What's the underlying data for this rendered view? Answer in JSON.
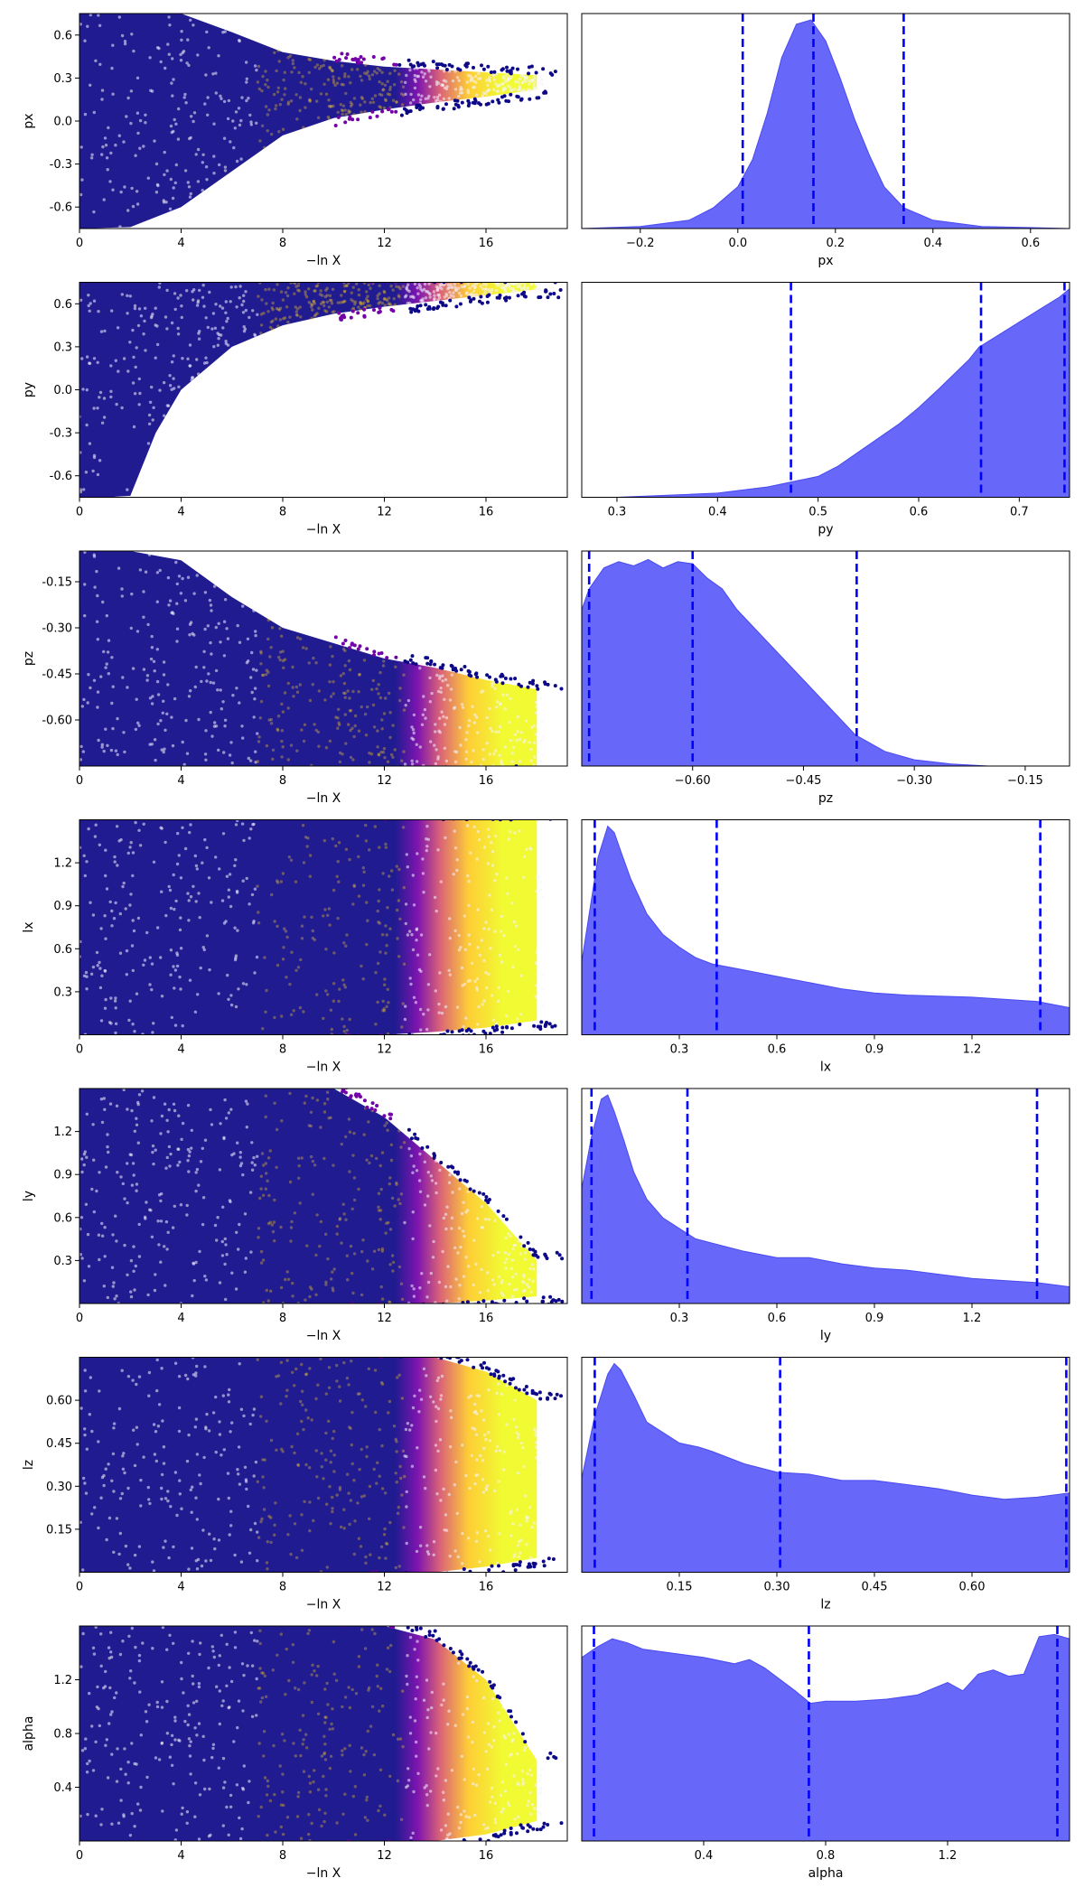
{
  "colors": {
    "scatter_colormap": "plasma",
    "colormap_stops": [
      "#0d0887",
      "#47039f",
      "#7301a8",
      "#9c179e",
      "#bd3786",
      "#d8576b",
      "#ed7953",
      "#fa9e3b",
      "#fdc926",
      "#f0f921"
    ],
    "kde_fill": "#6464fa",
    "kde_edge": "#4a4af0",
    "quantile_line": "#0000ff"
  },
  "chart_data": [
    {
      "type": "scatter",
      "xlabel": "−ln X",
      "ylabel": "px",
      "xlim": [
        0,
        19.2
      ],
      "xticks": [
        "0",
        "4",
        "8",
        "12",
        "16"
      ],
      "ylim": [
        -0.75,
        0.75
      ],
      "yticks": [
        "-0.6",
        "-0.3",
        "0.0",
        "0.3",
        "0.6"
      ],
      "envelope": {
        "x": [
          0,
          2,
          4,
          6,
          8,
          10,
          12,
          14,
          16,
          18
        ],
        "lower": [
          -0.75,
          -0.74,
          -0.6,
          -0.35,
          -0.1,
          0.02,
          0.08,
          0.13,
          0.17,
          0.22
        ],
        "upper": [
          0.75,
          0.75,
          0.75,
          0.62,
          0.48,
          0.42,
          0.38,
          0.36,
          0.34,
          0.32
        ]
      }
    },
    {
      "type": "area",
      "xlabel": "px",
      "xlim": [
        -0.32,
        0.68
      ],
      "xticks": [
        -0.2,
        0.0,
        0.2,
        0.4,
        0.6
      ],
      "xtick_labels": [
        "−0.2",
        "0.0",
        "0.2",
        "0.4",
        "0.6"
      ],
      "density": {
        "x": [
          -0.32,
          -0.2,
          -0.1,
          -0.05,
          0.0,
          0.03,
          0.06,
          0.09,
          0.12,
          0.15,
          0.18,
          0.21,
          0.24,
          0.27,
          0.3,
          0.34,
          0.4,
          0.5,
          0.68
        ],
        "y": [
          0.0,
          0.01,
          0.04,
          0.1,
          0.2,
          0.33,
          0.55,
          0.82,
          0.98,
          1.0,
          0.9,
          0.72,
          0.52,
          0.35,
          0.2,
          0.1,
          0.04,
          0.01,
          0.0
        ]
      },
      "quantiles": [
        0.01,
        0.155,
        0.34
      ]
    },
    {
      "type": "scatter",
      "xlabel": "−ln X",
      "ylabel": "py",
      "xlim": [
        0,
        19.2
      ],
      "xticks": [
        "0",
        "4",
        "8",
        "12",
        "16"
      ],
      "ylim": [
        -0.75,
        0.75
      ],
      "yticks": [
        "-0.6",
        "-0.3",
        "0.0",
        "0.3",
        "0.6"
      ],
      "envelope": {
        "x": [
          0,
          1,
          2,
          3,
          4,
          6,
          8,
          10,
          12,
          14,
          16,
          18
        ],
        "lower": [
          -0.75,
          -0.75,
          -0.74,
          -0.3,
          0.0,
          0.3,
          0.45,
          0.53,
          0.58,
          0.62,
          0.66,
          0.7
        ],
        "upper": [
          0.75,
          0.75,
          0.75,
          0.75,
          0.75,
          0.75,
          0.75,
          0.75,
          0.75,
          0.75,
          0.75,
          0.75
        ]
      }
    },
    {
      "type": "area",
      "xlabel": "py",
      "xlim": [
        0.265,
        0.75
      ],
      "xticks": [
        0.3,
        0.4,
        0.5,
        0.6,
        0.7
      ],
      "xtick_labels": [
        "0.3",
        "0.4",
        "0.5",
        "0.6",
        "0.7"
      ],
      "density": {
        "x": [
          0.265,
          0.3,
          0.35,
          0.4,
          0.45,
          0.48,
          0.5,
          0.52,
          0.55,
          0.58,
          0.6,
          0.62,
          0.65,
          0.66,
          0.68,
          0.7,
          0.72,
          0.74,
          0.75
        ],
        "y": [
          0.0,
          0.0,
          0.01,
          0.02,
          0.05,
          0.08,
          0.1,
          0.15,
          0.25,
          0.35,
          0.43,
          0.52,
          0.66,
          0.72,
          0.78,
          0.84,
          0.9,
          0.96,
          1.0
        ]
      },
      "quantiles": [
        0.473,
        0.662,
        0.745
      ]
    },
    {
      "type": "scatter",
      "xlabel": "−ln X",
      "ylabel": "pz",
      "xlim": [
        0,
        19.2
      ],
      "xticks": [
        "0",
        "4",
        "8",
        "12",
        "16"
      ],
      "ylim": [
        -0.75,
        -0.05
      ],
      "yticks": [
        "-0.60",
        "-0.45",
        "-0.30",
        "-0.15"
      ],
      "envelope": {
        "x": [
          0,
          2,
          4,
          6,
          8,
          10,
          12,
          14,
          16,
          18
        ],
        "lower": [
          -0.75,
          -0.75,
          -0.75,
          -0.75,
          -0.75,
          -0.75,
          -0.75,
          -0.75,
          -0.75,
          -0.75
        ],
        "upper": [
          -0.05,
          -0.05,
          -0.08,
          -0.2,
          -0.3,
          -0.35,
          -0.4,
          -0.43,
          -0.47,
          -0.5
        ]
      }
    },
    {
      "type": "area",
      "xlabel": "pz",
      "xlim": [
        -0.75,
        -0.09
      ],
      "xticks": [
        -0.6,
        -0.45,
        -0.3,
        -0.15
      ],
      "xtick_labels": [
        "−0.60",
        "−0.45",
        "−0.30",
        "−0.15"
      ],
      "density": {
        "x": [
          -0.75,
          -0.74,
          -0.72,
          -0.7,
          -0.68,
          -0.66,
          -0.64,
          -0.62,
          -0.6,
          -0.58,
          -0.56,
          -0.54,
          -0.5,
          -0.46,
          -0.42,
          -0.38,
          -0.34,
          -0.3,
          -0.25,
          -0.2,
          -0.09
        ],
        "y": [
          0.75,
          0.85,
          0.95,
          0.98,
          0.96,
          0.99,
          0.95,
          0.98,
          0.97,
          0.9,
          0.85,
          0.75,
          0.6,
          0.45,
          0.3,
          0.15,
          0.07,
          0.03,
          0.01,
          0.0,
          0.0
        ]
      },
      "quantiles": [
        -0.74,
        -0.6,
        -0.378
      ]
    },
    {
      "type": "scatter",
      "xlabel": "−ln X",
      "ylabel": "lx",
      "xlim": [
        0,
        19.2
      ],
      "xticks": [
        "0",
        "4",
        "8",
        "12",
        "16"
      ],
      "ylim": [
        0.0,
        1.5
      ],
      "yticks": [
        "0.3",
        "0.6",
        "0.9",
        "1.2"
      ],
      "envelope": {
        "x": [
          0,
          2,
          4,
          6,
          8,
          10,
          12,
          14,
          16,
          18
        ],
        "lower": [
          0.0,
          0.0,
          0.0,
          0.0,
          0.0,
          0.0,
          0.0,
          0.02,
          0.05,
          0.1
        ],
        "upper": [
          1.5,
          1.5,
          1.5,
          1.5,
          1.5,
          1.5,
          1.5,
          1.5,
          1.5,
          1.5
        ]
      }
    },
    {
      "type": "area",
      "xlabel": "lx",
      "xlim": [
        0.0,
        1.5
      ],
      "xticks": [
        0.3,
        0.6,
        0.9,
        1.2
      ],
      "xtick_labels": [
        "0.3",
        "0.6",
        "0.9",
        "1.2"
      ],
      "density": {
        "x": [
          0.0,
          0.02,
          0.05,
          0.08,
          0.1,
          0.12,
          0.15,
          0.2,
          0.25,
          0.3,
          0.35,
          0.4,
          0.5,
          0.6,
          0.7,
          0.8,
          0.9,
          1.0,
          1.2,
          1.4,
          1.5
        ],
        "y": [
          0.35,
          0.55,
          0.85,
          1.0,
          0.97,
          0.88,
          0.75,
          0.58,
          0.48,
          0.42,
          0.37,
          0.34,
          0.31,
          0.28,
          0.25,
          0.22,
          0.2,
          0.19,
          0.18,
          0.16,
          0.13
        ]
      },
      "quantiles": [
        0.04,
        0.415,
        1.41
      ]
    },
    {
      "type": "scatter",
      "xlabel": "−ln X",
      "ylabel": "ly",
      "xlim": [
        0,
        19.2
      ],
      "xticks": [
        "0",
        "4",
        "8",
        "12",
        "16"
      ],
      "ylim": [
        0.0,
        1.5
      ],
      "yticks": [
        "0.3",
        "0.6",
        "0.9",
        "1.2"
      ],
      "envelope": {
        "x": [
          0,
          2,
          4,
          6,
          8,
          10,
          12,
          14,
          16,
          18
        ],
        "lower": [
          0.0,
          0.0,
          0.0,
          0.0,
          0.0,
          0.0,
          0.0,
          0.0,
          0.02,
          0.05
        ],
        "upper": [
          1.5,
          1.5,
          1.5,
          1.5,
          1.5,
          1.5,
          1.3,
          1.0,
          0.7,
          0.3
        ]
      }
    },
    {
      "type": "area",
      "xlabel": "ly",
      "xlim": [
        0.0,
        1.5
      ],
      "xticks": [
        0.3,
        0.6,
        0.9,
        1.2
      ],
      "xtick_labels": [
        "0.3",
        "0.6",
        "0.9",
        "1.2"
      ],
      "density": {
        "x": [
          0.0,
          0.03,
          0.06,
          0.08,
          0.1,
          0.13,
          0.16,
          0.2,
          0.25,
          0.3,
          0.35,
          0.4,
          0.5,
          0.6,
          0.7,
          0.8,
          0.9,
          1.0,
          1.1,
          1.2,
          1.3,
          1.4,
          1.5
        ],
        "y": [
          0.55,
          0.8,
          0.98,
          1.0,
          0.92,
          0.78,
          0.63,
          0.5,
          0.41,
          0.36,
          0.31,
          0.29,
          0.25,
          0.22,
          0.22,
          0.19,
          0.17,
          0.16,
          0.14,
          0.12,
          0.11,
          0.1,
          0.08
        ]
      },
      "quantiles": [
        0.03,
        0.325,
        1.4
      ]
    },
    {
      "type": "scatter",
      "xlabel": "−ln X",
      "ylabel": "lz",
      "xlim": [
        0,
        19.2
      ],
      "xticks": [
        "0",
        "4",
        "8",
        "12",
        "16"
      ],
      "ylim": [
        0.0,
        0.75
      ],
      "yticks": [
        "0.15",
        "0.30",
        "0.45",
        "0.60"
      ],
      "envelope": {
        "x": [
          0,
          2,
          4,
          6,
          8,
          10,
          12,
          14,
          16,
          18
        ],
        "lower": [
          0.0,
          0.0,
          0.0,
          0.0,
          0.0,
          0.0,
          0.0,
          0.0,
          0.02,
          0.05
        ],
        "upper": [
          0.75,
          0.75,
          0.75,
          0.75,
          0.75,
          0.75,
          0.75,
          0.75,
          0.7,
          0.6
        ]
      }
    },
    {
      "type": "area",
      "xlabel": "lz",
      "xlim": [
        0.0,
        0.75
      ],
      "xticks": [
        0.15,
        0.3,
        0.45,
        0.6
      ],
      "xtick_labels": [
        "0.15",
        "0.30",
        "0.45",
        "0.60"
      ],
      "density": {
        "x": [
          0.0,
          0.02,
          0.04,
          0.05,
          0.06,
          0.08,
          0.1,
          0.12,
          0.15,
          0.18,
          0.2,
          0.25,
          0.3,
          0.35,
          0.4,
          0.45,
          0.5,
          0.55,
          0.6,
          0.65,
          0.7,
          0.75
        ],
        "y": [
          0.45,
          0.75,
          0.95,
          1.0,
          0.97,
          0.85,
          0.72,
          0.68,
          0.62,
          0.6,
          0.58,
          0.52,
          0.48,
          0.47,
          0.44,
          0.44,
          0.42,
          0.4,
          0.37,
          0.35,
          0.36,
          0.38
        ]
      },
      "quantiles": [
        0.02,
        0.305,
        0.745
      ]
    },
    {
      "type": "scatter",
      "xlabel": "−ln X",
      "ylabel": "alpha",
      "xlim": [
        0,
        19.2
      ],
      "xticks": [
        "0",
        "4",
        "8",
        "12",
        "16"
      ],
      "ylim": [
        0.0,
        1.6
      ],
      "yticks": [
        "0.4",
        "0.8",
        "1.2"
      ],
      "envelope": {
        "x": [
          0,
          2,
          4,
          6,
          8,
          10,
          12,
          14,
          16,
          18
        ],
        "lower": [
          0.0,
          0.0,
          0.0,
          0.0,
          0.0,
          0.0,
          0.0,
          0.0,
          0.05,
          0.15
        ],
        "upper": [
          1.6,
          1.6,
          1.6,
          1.6,
          1.6,
          1.6,
          1.6,
          1.5,
          1.2,
          0.6
        ]
      }
    },
    {
      "type": "area",
      "xlabel": "alpha",
      "xlim": [
        0.0,
        1.6
      ],
      "xticks": [
        0.4,
        0.8,
        1.2
      ],
      "xtick_labels": [
        "0.4",
        "0.8",
        "1.2"
      ],
      "density": {
        "x": [
          0.0,
          0.05,
          0.1,
          0.15,
          0.2,
          0.3,
          0.4,
          0.5,
          0.55,
          0.6,
          0.7,
          0.75,
          0.8,
          0.9,
          1.0,
          1.1,
          1.2,
          1.25,
          1.3,
          1.35,
          1.4,
          1.45,
          1.5,
          1.55,
          1.6
        ],
        "y": [
          0.88,
          0.93,
          0.97,
          0.95,
          0.92,
          0.9,
          0.88,
          0.85,
          0.87,
          0.83,
          0.72,
          0.66,
          0.67,
          0.67,
          0.68,
          0.7,
          0.76,
          0.72,
          0.8,
          0.82,
          0.79,
          0.8,
          0.98,
          0.99,
          0.97
        ]
      },
      "quantiles": [
        0.04,
        0.745,
        1.56
      ]
    }
  ]
}
